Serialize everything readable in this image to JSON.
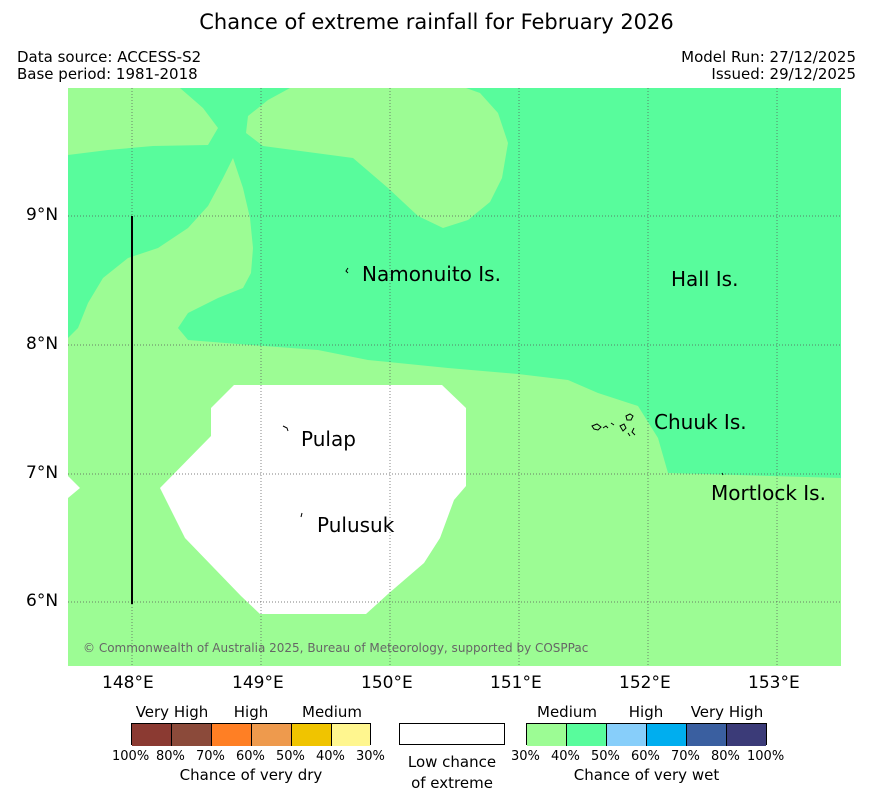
{
  "title": "Chance of extreme rainfall for February 2026",
  "header": {
    "data_source": "Data source: ACCESS-S2",
    "base_period": "Base period: 1981-2018",
    "model_run": "Model Run: 27/12/2025",
    "issued": "Issued: 29/12/2025"
  },
  "map": {
    "x_ticks": [
      "148°E",
      "149°E",
      "150°E",
      "151°E",
      "152°E",
      "153°E"
    ],
    "y_ticks": [
      "9°N",
      "8°N",
      "7°N",
      "6°N"
    ],
    "places": {
      "namonuito": "Namonuito Is.",
      "hall": "Hall Is.",
      "pulap": "Pulap",
      "chuuk": "Chuuk Is.",
      "mortlock": "Mortlock Is.",
      "pulusuk": "Pulusuk"
    },
    "copyright": "© Commonwealth of Australia 2025, Bureau of Meteorology, supported by COSPPac",
    "colors": {
      "medium_wet": "#9cfc94",
      "medium_wet_40": "#58fc9c",
      "low": "#ffffff"
    }
  },
  "legend": {
    "dry": {
      "categories": [
        "Very High",
        "High",
        "Medium"
      ],
      "colors": [
        "#8b3a32",
        "#8b4a3a",
        "#ff7f24",
        "#ee9a4d",
        "#f0c400",
        "#fff68f"
      ],
      "percent_labels": [
        "100%",
        "80%",
        "70%",
        "60%",
        "50%",
        "40%",
        "30%"
      ],
      "caption": "Chance of very dry"
    },
    "low": {
      "caption_line1": "Low chance",
      "caption_line2": "of extreme",
      "color": "#ffffff"
    },
    "wet": {
      "categories": [
        "Medium",
        "High",
        "Very High"
      ],
      "colors": [
        "#9cfc94",
        "#58fc9c",
        "#87cefa",
        "#00aeef",
        "#3a5fa0",
        "#3b3b78"
      ],
      "percent_labels": [
        "30%",
        "40%",
        "50%",
        "60%",
        "70%",
        "80%",
        "100%"
      ],
      "caption": "Chance of very wet"
    }
  }
}
